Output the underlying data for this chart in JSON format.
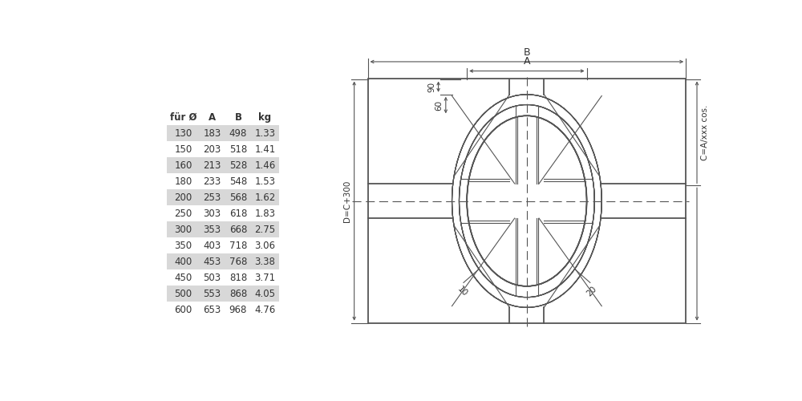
{
  "table_headers": [
    "für Ø",
    "A",
    "B",
    "kg"
  ],
  "table_data": [
    [
      130,
      183,
      498,
      "1.33"
    ],
    [
      150,
      203,
      518,
      "1.41"
    ],
    [
      160,
      213,
      528,
      "1.46"
    ],
    [
      180,
      233,
      548,
      "1.53"
    ],
    [
      200,
      253,
      568,
      "1.62"
    ],
    [
      250,
      303,
      618,
      "1.83"
    ],
    [
      300,
      353,
      668,
      "2.75"
    ],
    [
      350,
      403,
      718,
      "3.06"
    ],
    [
      400,
      453,
      768,
      "3.38"
    ],
    [
      450,
      503,
      818,
      "3.71"
    ],
    [
      500,
      553,
      868,
      "4.05"
    ],
    [
      600,
      653,
      968,
      "4.76"
    ]
  ],
  "shaded_rows": [
    0,
    2,
    4,
    6,
    8,
    10
  ],
  "row_bg_color": "#d8d8d8",
  "text_color": "#333333",
  "line_color": "#555555",
  "bg_color": "#ffffff"
}
